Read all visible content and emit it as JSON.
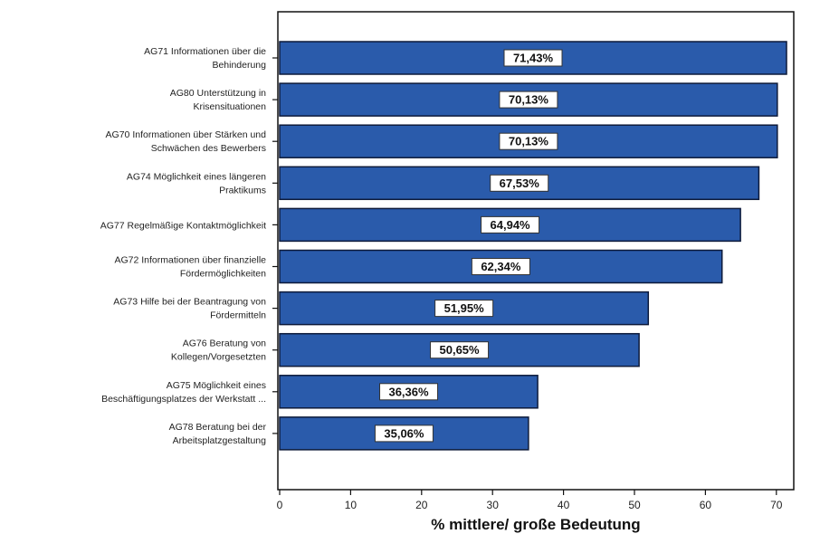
{
  "chart_data": {
    "type": "bar",
    "orientation": "horizontal",
    "categories": [
      [
        "AG71 Informationen über die",
        "Behinderung"
      ],
      [
        "AG80 Unterstützung in",
        "Krisensituationen"
      ],
      [
        "AG70 Informationen über Stärken und",
        "Schwächen des Bewerbers"
      ],
      [
        "AG74 Möglichkeit eines längeren",
        "Praktikums"
      ],
      [
        "AG77 Regelmäßige Kontaktmöglichkeit"
      ],
      [
        "AG72 Informationen über finanzielle",
        "Fördermöglichkeiten"
      ],
      [
        "AG73 Hilfe bei der Beantragung von",
        "Fördermitteln"
      ],
      [
        "AG76 Beratung von",
        "Kollegen/Vorgesetzten"
      ],
      [
        "AG75 Möglichkeit eines",
        "Beschäftigungsplatzes der Werkstatt ..."
      ],
      [
        "AG78 Beratung bei der",
        "Arbeitsplatzgestaltung"
      ]
    ],
    "values": [
      71.43,
      70.13,
      70.13,
      67.53,
      64.94,
      62.34,
      51.95,
      50.65,
      36.36,
      35.06
    ],
    "data_labels": [
      "71,43%",
      "70,13%",
      "70,13%",
      "67,53%",
      "64,94%",
      "62,34%",
      "51,95%",
      "50,65%",
      "36,36%",
      "35,06%"
    ],
    "xlabel": "% mittlere/ große Bedeutung",
    "ylabel": "",
    "xlim": [
      0,
      73
    ],
    "xticks": [
      0,
      10,
      20,
      30,
      40,
      50,
      60,
      70
    ],
    "grid": false,
    "legend": "none",
    "colors": {
      "bar_fill": "#2a5bab",
      "bar_stroke": "#0d1a3a",
      "label_box_fill": "#ffffff",
      "label_box_stroke": "#333333",
      "frame": "#111111"
    }
  }
}
